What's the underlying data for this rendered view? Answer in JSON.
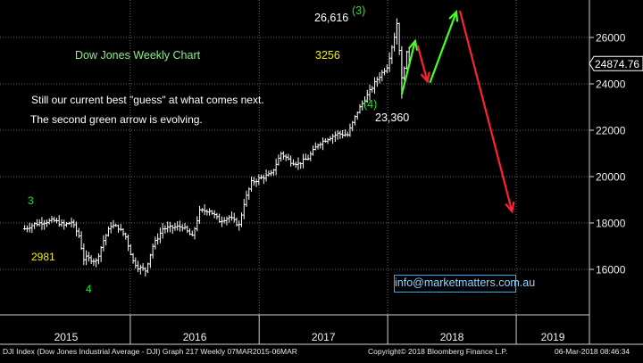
{
  "chart_data": {
    "type": "bar",
    "subtype": "ohlc-weekly",
    "title": "Dow Jones Weekly Chart",
    "notes": [
      "Still our current best \"guess\" at what comes next.",
      "The second green arrow is evolving."
    ],
    "y_ticks": [
      "16000",
      "18000",
      "20000",
      "22000",
      "24000",
      "26000"
    ],
    "y_tick_values": [
      16000,
      18000,
      20000,
      22000,
      24000,
      26000
    ],
    "ylim": [
      14500,
      27500
    ],
    "x_ticks": [
      "2015",
      "2016",
      "2017",
      "2018",
      "2019"
    ],
    "last_price": "24874.76",
    "series": [
      {
        "points": [
          [
            "2015-03-07",
            17750
          ],
          [
            "2015-04-04",
            17950
          ],
          [
            "2015-05-02",
            18050
          ],
          [
            "2015-05-30",
            18100
          ],
          [
            "2015-06-27",
            17900
          ],
          [
            "2015-07-18",
            18050
          ],
          [
            "2015-08-08",
            17450
          ],
          [
            "2015-08-22",
            16450
          ],
          [
            "2015-08-29",
            16500
          ],
          [
            "2015-09-26",
            16350
          ],
          [
            "2015-10-17",
            17250
          ],
          [
            "2015-11-07",
            17900
          ],
          [
            "2015-11-28",
            17800
          ],
          [
            "2015-12-19",
            17400
          ],
          [
            "2016-01-09",
            16350
          ],
          [
            "2016-01-23",
            16100
          ],
          [
            "2016-02-13",
            15950
          ],
          [
            "2016-03-05",
            17000
          ],
          [
            "2016-04-02",
            17750
          ],
          [
            "2016-04-30",
            17800
          ],
          [
            "2016-05-28",
            17850
          ],
          [
            "2016-06-25",
            17400
          ],
          [
            "2016-07-16",
            18500
          ],
          [
            "2016-08-13",
            18550
          ],
          [
            "2016-09-10",
            18100
          ],
          [
            "2016-10-08",
            18250
          ],
          [
            "2016-11-05",
            17900
          ],
          [
            "2016-11-19",
            18850
          ],
          [
            "2016-12-10",
            19750
          ],
          [
            "2017-01-07",
            19950
          ],
          [
            "2017-02-04",
            20100
          ],
          [
            "2017-03-04",
            21000
          ],
          [
            "2017-04-01",
            20650
          ],
          [
            "2017-04-22",
            20550
          ],
          [
            "2017-05-20",
            20800
          ],
          [
            "2017-06-17",
            21400
          ],
          [
            "2017-07-15",
            21650
          ],
          [
            "2017-08-12",
            21850
          ],
          [
            "2017-09-09",
            21800
          ],
          [
            "2017-10-07",
            22800
          ],
          [
            "2017-11-04",
            23500
          ],
          [
            "2017-12-02",
            24200
          ],
          [
            "2017-12-30",
            24750
          ],
          [
            "2018-01-20",
            26050
          ],
          [
            "2018-01-27",
            26616
          ],
          [
            "2018-02-03",
            25500
          ],
          [
            "2018-02-10",
            24200
          ],
          [
            "2018-02-24",
            25300
          ],
          [
            "2018-03-06",
            24874
          ]
        ]
      }
    ],
    "annotations": [
      {
        "text": "3",
        "color": "#22e622"
      },
      {
        "text": "2981",
        "color": "#f0f000"
      },
      {
        "text": "4",
        "color": "#22e622"
      },
      {
        "text": "26,616",
        "color": "#ffffff"
      },
      {
        "text": "(3)",
        "color": "#22e622"
      },
      {
        "text": "3256",
        "color": "#f0f000"
      },
      {
        "text": "(4)",
        "color": "#22e622"
      },
      {
        "text": "23,360",
        "color": "#ffffff"
      }
    ],
    "projection_arrows": [
      {
        "name": "green-arrow-1",
        "color": "#44ff22"
      },
      {
        "name": "red-arrow-1",
        "color": "#ff2233"
      },
      {
        "name": "green-arrow-2",
        "color": "#44ff22"
      },
      {
        "name": "red-arrow-2",
        "color": "#ff2233"
      }
    ],
    "colors": {
      "background": "#000000",
      "price": "#ffffff",
      "grid": "#8a8a8a",
      "title": "#8ef08e",
      "green": "#44ff22",
      "red": "#ff2233",
      "link": "#2fa8f5"
    }
  },
  "website": "info@marketmatters.com.au",
  "footer": {
    "left": "DJI Index (Dow Jones Industrial Average - DJI) Graph 217  Weekly 07MAR2015-06MAR",
    "middle": "Copyright© 2018 Bloomberg Finance L.P.",
    "right": "06-Mar-2018 08:46:34"
  }
}
